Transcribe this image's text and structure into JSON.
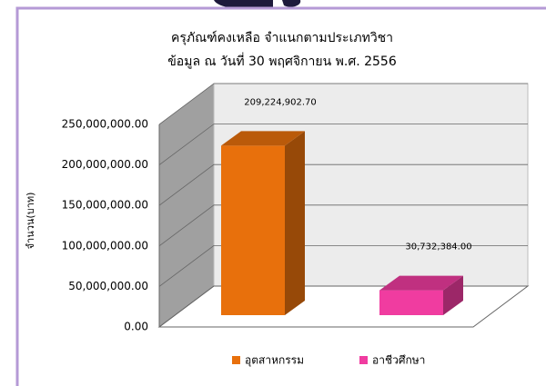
{
  "chart_data": {
    "type": "bar3d",
    "title": "ครุภัณฑ์คงเหลือ จำแนกตามประเภทวิชา",
    "subtitle": "ข้อมูล ณ วันที่ 30 พฤศจิกายน พ.ศ. 2556",
    "y_label": "จำนวน(บาท)",
    "categories": [
      "อุตสาหกรรม",
      "อาชีวศึกษา"
    ],
    "series": [
      {
        "name": "อุตสาหกรรม",
        "color": "#e8700c"
      },
      {
        "name": "อาชีวศึกษา",
        "color": "#f03ca0"
      }
    ],
    "values": [
      209224902.7,
      30732384.0
    ],
    "value_labels": [
      "209,224,902.70",
      "30,732,384.00"
    ],
    "ylim": [
      0,
      250000000
    ],
    "yticks": [
      {
        "value": 0,
        "label": "0.00"
      },
      {
        "value": 50000000,
        "label": "50,000,000.00"
      },
      {
        "value": 100000000,
        "label": "100,000,000.00"
      },
      {
        "value": 150000000,
        "label": "150,000,000.00"
      },
      {
        "value": 200000000,
        "label": "200,000,000.00"
      },
      {
        "value": 250000000,
        "label": "250,000,000.00"
      }
    ],
    "grid": true
  }
}
